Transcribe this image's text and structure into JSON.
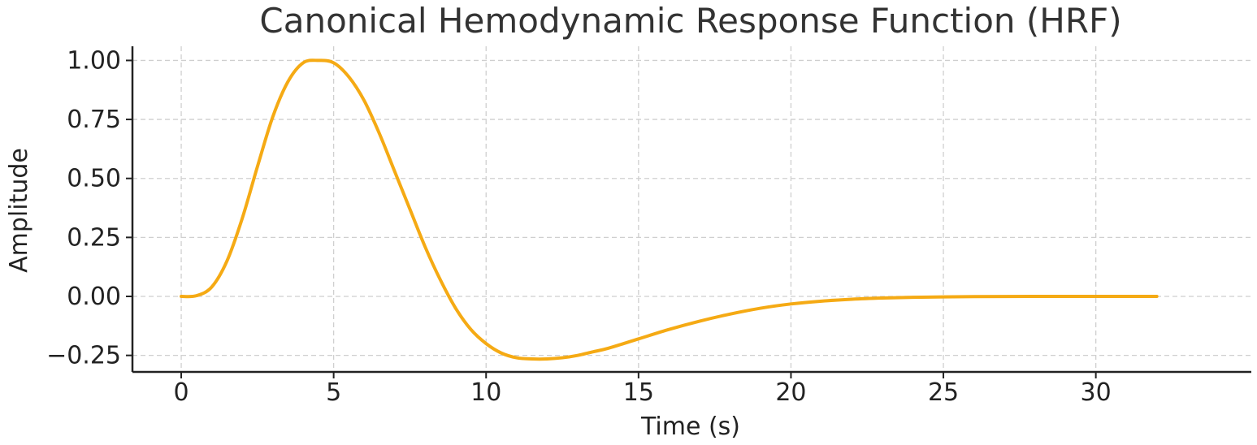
{
  "chart_data": {
    "type": "line",
    "title": "Canonical Hemodynamic Response Function (HRF)",
    "xlabel": "Time (s)",
    "ylabel": "Amplitude",
    "xlim": [
      -1.6,
      35.1
    ],
    "ylim": [
      -0.32,
      1.06
    ],
    "xticks": [
      0,
      5,
      10,
      15,
      20,
      25,
      30
    ],
    "xtick_labels": [
      "0",
      "5",
      "10",
      "15",
      "20",
      "25",
      "30"
    ],
    "yticks": [
      -0.25,
      0,
      0.25,
      0.5,
      0.75,
      1.0
    ],
    "ytick_labels": [
      "−0.25",
      "0.00",
      "0.25",
      "0.50",
      "0.75",
      "1.00"
    ],
    "grid": true,
    "line_color": "#f5aa14",
    "series": [
      {
        "x": [
          0,
          0.5,
          1,
          1.5,
          2,
          2.5,
          3,
          3.5,
          4,
          4.5,
          5,
          5.5,
          6,
          6.5,
          7,
          7.5,
          8,
          8.5,
          9,
          9.5,
          10,
          10.5,
          11,
          11.5,
          12,
          12.5,
          13,
          13.5,
          14,
          15,
          16,
          17,
          18,
          19,
          20,
          21,
          22,
          23,
          24,
          25,
          26,
          27,
          28,
          29,
          30,
          31,
          32
        ],
        "y": [
          0.0,
          0.003,
          0.04,
          0.15,
          0.33,
          0.55,
          0.76,
          0.91,
          0.99,
          1.0,
          0.99,
          0.93,
          0.83,
          0.69,
          0.53,
          0.37,
          0.21,
          0.07,
          -0.05,
          -0.14,
          -0.2,
          -0.24,
          -0.26,
          -0.265,
          -0.265,
          -0.26,
          -0.25,
          -0.235,
          -0.22,
          -0.18,
          -0.14,
          -0.105,
          -0.075,
          -0.05,
          -0.032,
          -0.02,
          -0.012,
          -0.007,
          -0.004,
          -0.002,
          -0.001,
          -0.0005,
          0,
          0,
          0,
          0,
          0
        ]
      }
    ]
  }
}
